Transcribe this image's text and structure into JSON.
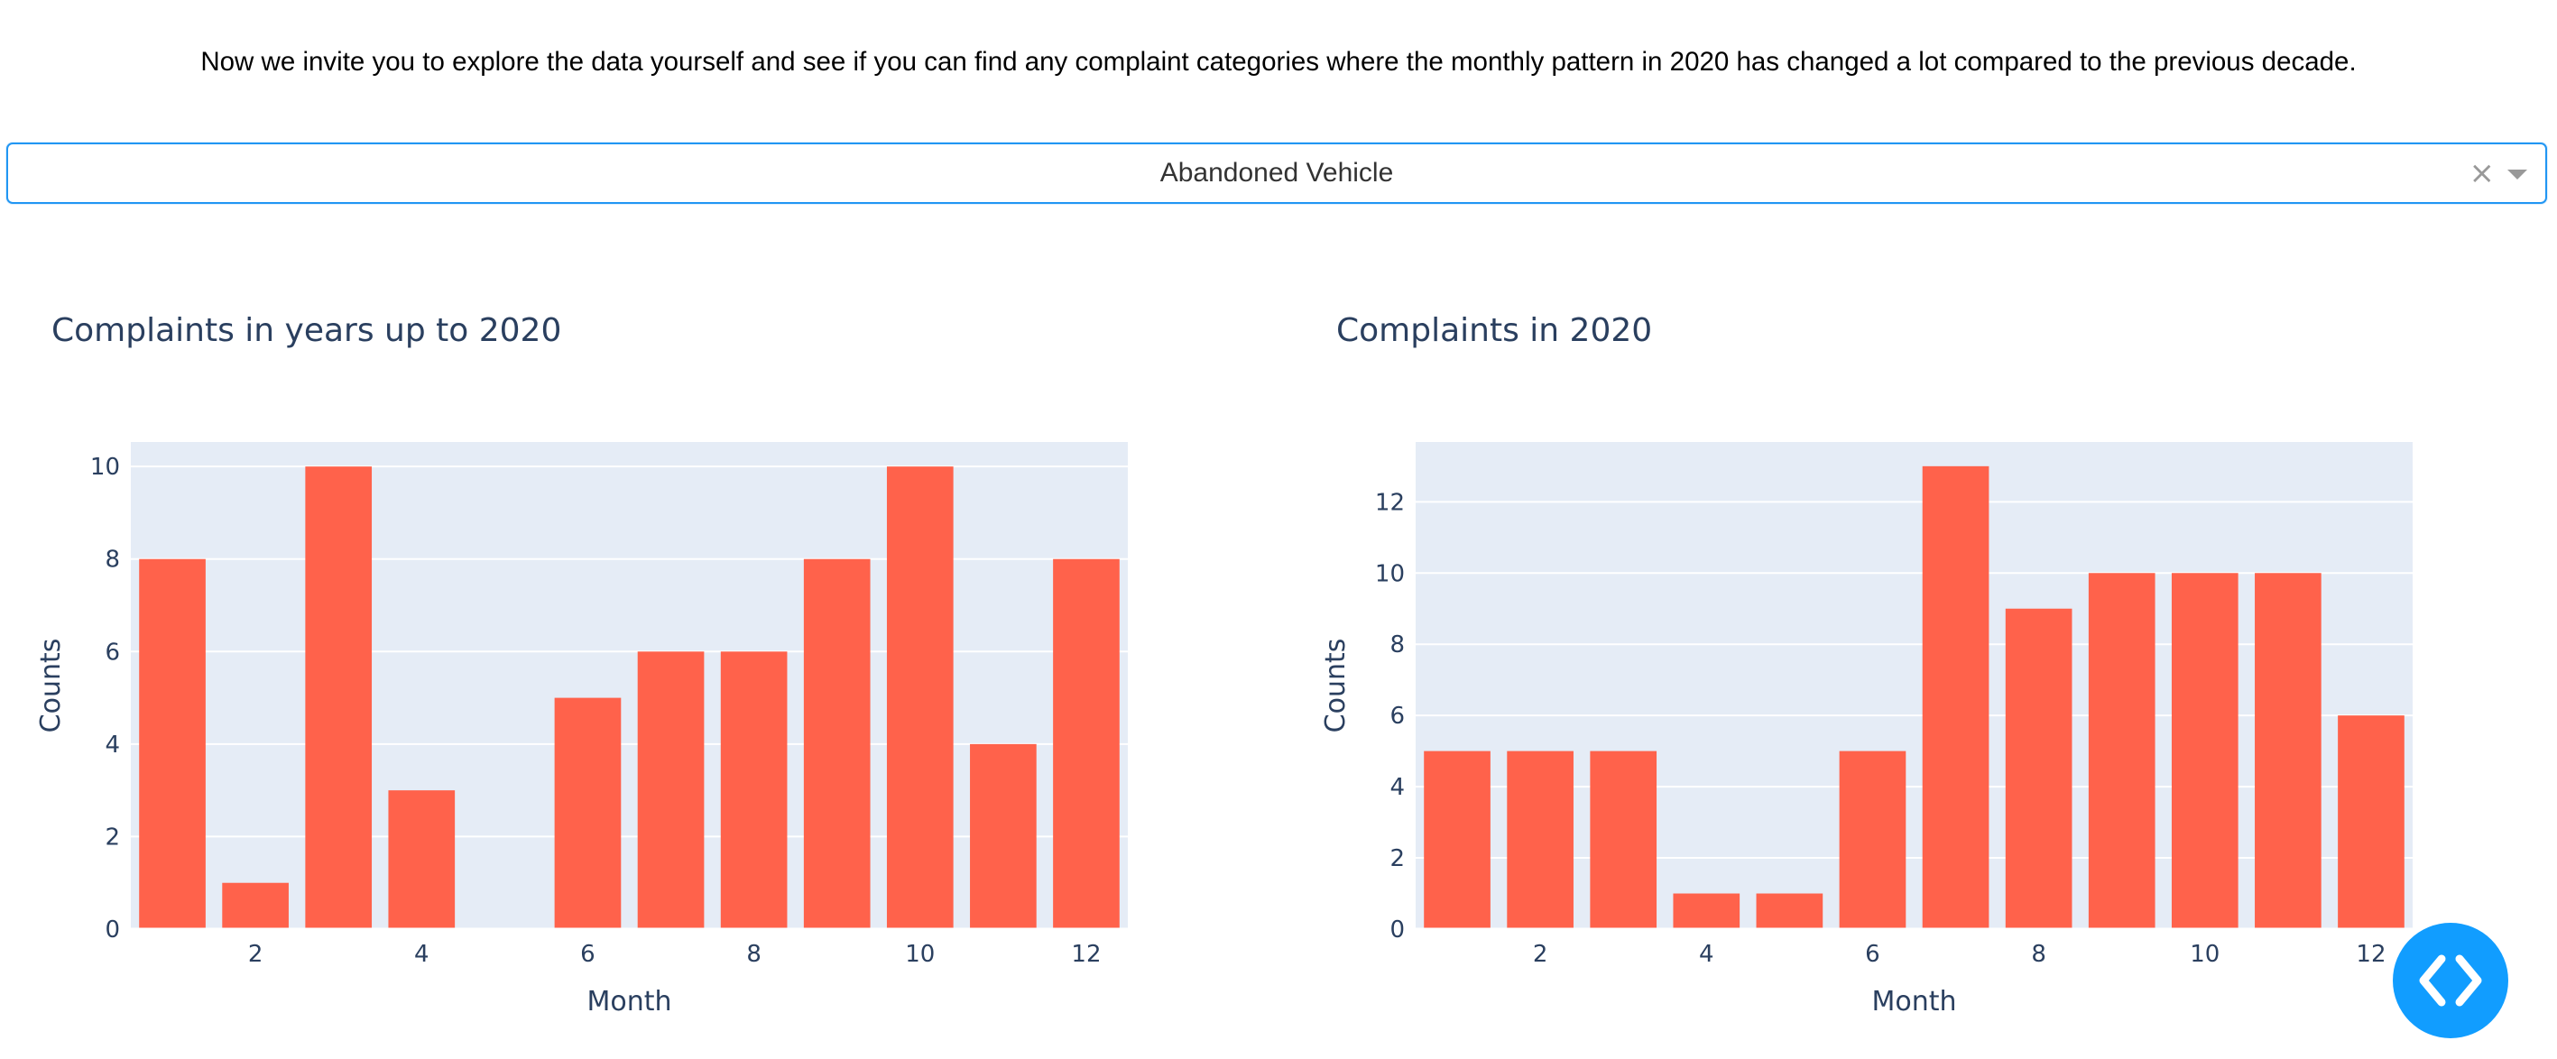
{
  "intro_text": "Now we invite you to explore the data yourself and see if you can find any complaint categories where the monthly pattern in 2020 has changed a lot compared to the previous decade.",
  "dropdown": {
    "selected": "Abandoned Vehicle",
    "clear_glyph": "×"
  },
  "colors": {
    "bar": "#ff624b",
    "plot_bg": "#e5ecf6",
    "grid": "#ffffff",
    "text": "#2a3f5f",
    "accent": "#119dff",
    "dropdown_border": "#2196f3"
  },
  "debug_button": {
    "icon": "code-brackets-icon"
  },
  "chart_data": [
    {
      "type": "bar",
      "title": "Complaints in years up to 2020",
      "xlabel": "Month",
      "ylabel": "Counts",
      "x": [
        1,
        2,
        3,
        4,
        5,
        6,
        7,
        8,
        9,
        10,
        11,
        12
      ],
      "values": [
        8,
        1,
        10,
        3,
        0,
        5,
        6,
        6,
        8,
        10,
        4,
        8
      ],
      "xticks": [
        2,
        4,
        6,
        8,
        10,
        12
      ],
      "yticks": [
        0,
        2,
        4,
        6,
        8,
        10
      ],
      "xlim": [
        0.5,
        12.5
      ],
      "ylim": [
        0,
        10.53
      ],
      "grid": true,
      "legend": "none"
    },
    {
      "type": "bar",
      "title": "Complaints in 2020",
      "xlabel": "Month",
      "ylabel": "Counts",
      "x": [
        1,
        2,
        3,
        4,
        5,
        6,
        7,
        8,
        9,
        10,
        11,
        12
      ],
      "values": [
        5,
        5,
        5,
        1,
        1,
        5,
        13,
        9,
        10,
        10,
        10,
        6
      ],
      "xticks": [
        2,
        4,
        6,
        8,
        10,
        12
      ],
      "yticks": [
        0,
        2,
        4,
        6,
        8,
        10,
        12
      ],
      "xlim": [
        0.5,
        12.5
      ],
      "ylim": [
        0,
        13.68
      ],
      "grid": true,
      "legend": "none"
    }
  ]
}
